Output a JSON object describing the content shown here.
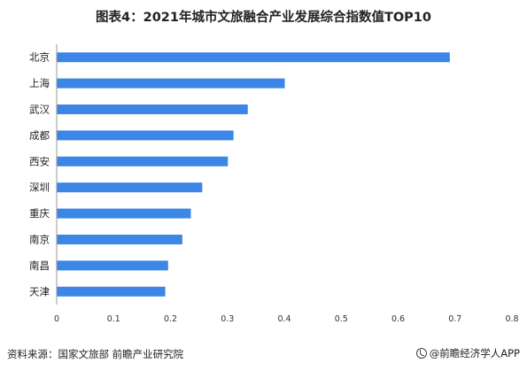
{
  "title": "图表4：2021年城市文旅融合产业发展综合指数值TOP10",
  "source": "资料来源：国家文旅部 前瞻产业研究院",
  "brand": "@前瞻经济学人APP",
  "colors": {
    "bar": "#3b86e6",
    "axis": "#999999"
  },
  "chart_data": {
    "type": "bar",
    "orientation": "horizontal",
    "title": "图表4：2021年城市文旅融合产业发展综合指数值TOP10",
    "categories": [
      "北京",
      "上海",
      "武汉",
      "成都",
      "西安",
      "深圳",
      "重庆",
      "南京",
      "南昌",
      "天津"
    ],
    "values": [
      0.69,
      0.4,
      0.335,
      0.31,
      0.3,
      0.255,
      0.235,
      0.22,
      0.195,
      0.19
    ],
    "xlim": [
      0,
      0.8
    ],
    "xticks": [
      "0",
      "0.1",
      "0.2",
      "0.3",
      "0.4",
      "0.5",
      "0.6",
      "0.7",
      "0.8"
    ],
    "xlabel": "",
    "ylabel": "",
    "grid": false,
    "legend": "none"
  }
}
